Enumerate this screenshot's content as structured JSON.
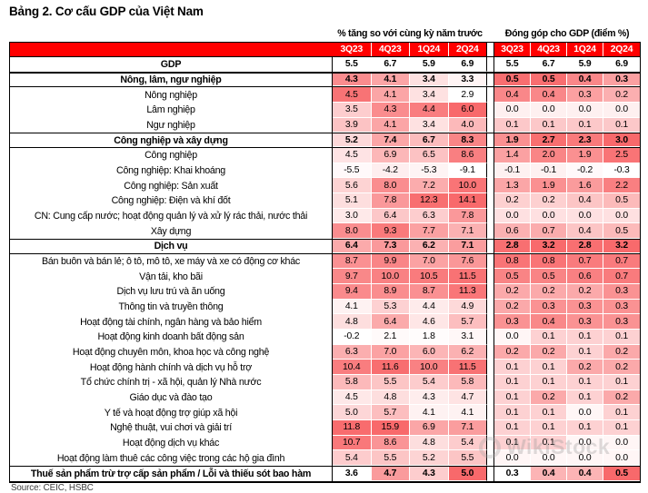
{
  "title": "Bảng 2. Cơ cấu GDP của Việt Nam",
  "source": "Source:  CEIC, HSBC",
  "watermark": "WikiStock",
  "colors": {
    "header_red": "#FF0000",
    "heat_max": "#F8696B",
    "heat_min": "#FFFFFF"
  },
  "column_groups": [
    {
      "label": "% tăng so với cùng kỳ năm trước",
      "quarters": [
        "3Q23",
        "4Q23",
        "1Q24",
        "2Q24"
      ]
    },
    {
      "label": "Đóng góp cho GDP (điểm %)",
      "quarters": [
        "3Q23",
        "4Q23",
        "1Q24",
        "2Q24"
      ]
    }
  ],
  "rows": [
    {
      "label": "GDP",
      "style": "total",
      "section": null,
      "growth": [
        5.5,
        6.7,
        5.9,
        6.9
      ],
      "contribution": [
        5.5,
        6.7,
        5.9,
        6.9
      ]
    },
    {
      "label": "Nông, lâm, ngư nghiệp",
      "style": "section",
      "section": "agri",
      "growth": [
        4.3,
        4.1,
        3.4,
        3.3
      ],
      "contribution": [
        0.5,
        0.5,
        0.4,
        0.3
      ]
    },
    {
      "label": "Nông nghiệp",
      "style": "sub",
      "section": "agri",
      "growth": [
        4.5,
        4.1,
        3.4,
        2.9
      ],
      "contribution": [
        0.4,
        0.4,
        0.3,
        0.2
      ]
    },
    {
      "label": "Lâm nghiệp",
      "style": "sub",
      "section": "agri",
      "growth": [
        3.5,
        4.3,
        4.4,
        6.0
      ],
      "contribution": [
        0.0,
        0.0,
        0.0,
        0.0
      ]
    },
    {
      "label": "Ngư nghiệp",
      "style": "sub",
      "section": "agri",
      "growth": [
        3.9,
        4.1,
        3.4,
        4.0
      ],
      "contribution": [
        0.1,
        0.1,
        0.1,
        0.1
      ]
    },
    {
      "label": "Công nghiệp và xây dựng",
      "style": "section",
      "section": "industry",
      "growth": [
        5.2,
        7.4,
        6.7,
        8.3
      ],
      "contribution": [
        1.9,
        2.7,
        2.3,
        3.0
      ]
    },
    {
      "label": "Công nghiệp",
      "style": "sub",
      "section": "industry",
      "growth": [
        4.5,
        6.9,
        6.5,
        8.6
      ],
      "contribution": [
        1.4,
        2.0,
        1.9,
        2.5
      ]
    },
    {
      "label": "Công nghiệp: Khai khoáng",
      "style": "sub",
      "section": "industry",
      "growth": [
        -5.5,
        -4.2,
        -5.3,
        -9.1
      ],
      "contribution": [
        -0.1,
        -0.1,
        -0.2,
        -0.3
      ]
    },
    {
      "label": "Công nghiệp: Sản xuất",
      "style": "sub",
      "section": "industry",
      "growth": [
        5.6,
        8.0,
        7.2,
        10.0
      ],
      "contribution": [
        1.3,
        1.9,
        1.6,
        2.2
      ]
    },
    {
      "label": "Công nghiệp: Điện và khí đốt",
      "style": "sub",
      "section": "industry",
      "growth": [
        5.1,
        7.8,
        12.3,
        14.1
      ],
      "contribution": [
        0.2,
        0.2,
        0.4,
        0.5
      ]
    },
    {
      "label": "CN: Cung cấp nước; hoạt động quản lý và xử lý rác thải, nước thải",
      "style": "sub",
      "section": "industry",
      "growth": [
        3.0,
        6.4,
        6.3,
        7.8
      ],
      "contribution": [
        0.0,
        0.0,
        0.0,
        0.0
      ]
    },
    {
      "label": "Xây dựng",
      "style": "sub",
      "section": "industry",
      "growth": [
        8.0,
        9.3,
        7.7,
        7.1
      ],
      "contribution": [
        0.6,
        0.7,
        0.4,
        0.5
      ]
    },
    {
      "label": "Dịch vụ",
      "style": "section",
      "section": "services",
      "growth": [
        6.4,
        7.3,
        6.2,
        7.1
      ],
      "contribution": [
        2.8,
        3.2,
        2.8,
        3.2
      ]
    },
    {
      "label": "Bán buôn và bán lẻ; ô tô, mô tô, xe máy và xe có động cơ khác",
      "style": "sub",
      "section": "services",
      "growth": [
        8.7,
        9.9,
        7.0,
        7.6
      ],
      "contribution": [
        0.8,
        0.8,
        0.7,
        0.7
      ]
    },
    {
      "label": "Vận tải, kho bãi",
      "style": "sub",
      "section": "services",
      "growth": [
        9.7,
        10.0,
        10.5,
        11.5
      ],
      "contribution": [
        0.5,
        0.5,
        0.6,
        0.7
      ]
    },
    {
      "label": "Dịch vụ lưu trú và ăn uống",
      "style": "sub",
      "section": "services",
      "growth": [
        9.4,
        8.9,
        8.7,
        11.3
      ],
      "contribution": [
        0.2,
        0.2,
        0.2,
        0.3
      ]
    },
    {
      "label": "Thông tin và truyền thông",
      "style": "sub",
      "section": "services",
      "growth": [
        4.1,
        5.3,
        4.4,
        4.9
      ],
      "contribution": [
        0.2,
        0.3,
        0.3,
        0.3
      ]
    },
    {
      "label": "Hoạt động tài chính, ngân hàng và bảo hiểm",
      "style": "sub",
      "section": "services",
      "growth": [
        4.8,
        6.4,
        4.6,
        5.7
      ],
      "contribution": [
        0.3,
        0.4,
        0.3,
        0.3
      ]
    },
    {
      "label": "Hoạt động kinh doanh bất động sản",
      "style": "sub",
      "section": "services",
      "growth": [
        -0.2,
        2.1,
        1.8,
        3.1
      ],
      "contribution": [
        0.0,
        0.1,
        0.1,
        0.1
      ]
    },
    {
      "label": "Hoạt động chuyên môn, khoa học và công nghệ",
      "style": "sub",
      "section": "services",
      "growth": [
        6.3,
        7.0,
        6.0,
        6.2
      ],
      "contribution": [
        0.2,
        0.2,
        0.1,
        0.2
      ]
    },
    {
      "label": "Hoạt động hành chính và dịch vụ hỗ trợ",
      "style": "sub",
      "section": "services",
      "growth": [
        10.4,
        11.6,
        10.0,
        11.5
      ],
      "contribution": [
        0.1,
        0.1,
        0.2,
        0.2
      ]
    },
    {
      "label": "Tổ chức chính trị - xã hội, quản lý Nhà nước",
      "style": "sub",
      "section": "services",
      "growth": [
        5.8,
        5.5,
        5.4,
        5.8
      ],
      "contribution": [
        0.1,
        0.1,
        0.1,
        0.1
      ]
    },
    {
      "label": "Giáo dục và đào tạo",
      "style": "sub",
      "section": "services",
      "growth": [
        4.5,
        4.8,
        4.3,
        4.7
      ],
      "contribution": [
        0.1,
        0.2,
        0.1,
        0.2
      ]
    },
    {
      "label": "Y tế và hoạt động trợ giúp xã hội",
      "style": "sub",
      "section": "services",
      "growth": [
        5.0,
        5.7,
        4.1,
        4.1
      ],
      "contribution": [
        0.1,
        0.1,
        0.0,
        0.1
      ]
    },
    {
      "label": "Nghệ thuật, vui chơi và giải trí",
      "style": "sub",
      "section": "services",
      "growth": [
        11.8,
        15.9,
        6.9,
        7.1
      ],
      "contribution": [
        0.1,
        0.1,
        0.1,
        0.1
      ]
    },
    {
      "label": "Hoạt động dịch vụ khác",
      "style": "sub",
      "section": "services",
      "growth": [
        10.7,
        8.6,
        4.8,
        5.4
      ],
      "contribution": [
        0.1,
        0.1,
        0.0,
        0.0
      ]
    },
    {
      "label": "Hoạt động làm thuê các công việc trong các hộ gia đình",
      "style": "sub",
      "section": "services",
      "growth": [
        5.4,
        5.5,
        5.2,
        5.5
      ],
      "contribution": [
        0.0,
        0.0,
        0.0,
        0.0
      ]
    },
    {
      "label": "Thuế sản phẩm trừ trợ cấp sản phẩm / Lỗi và thiếu sót bao hàm",
      "style": "tax",
      "section": "tax",
      "growth": [
        3.6,
        4.7,
        4.3,
        5.0
      ],
      "contribution": [
        0.3,
        0.4,
        0.4,
        0.5
      ]
    }
  ]
}
